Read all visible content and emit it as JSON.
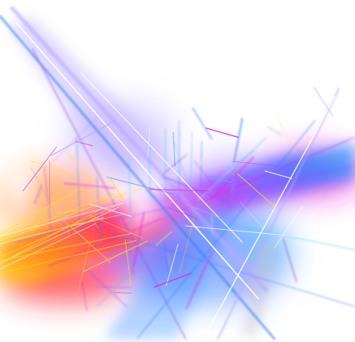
{
  "artwork": {
    "subject": "abstract-light-streaks",
    "colors": {
      "background": "#ffffff",
      "yellow": "#ffe21a",
      "orange": "#ff7a1a",
      "red": "#ff2a3c",
      "magenta": "#f01ad8",
      "violet": "#8a4dff",
      "blue": "#2f7dff",
      "cyan": "#45b8ff",
      "lavender": "#b9a8ff",
      "white": "#ffffff"
    }
  }
}
